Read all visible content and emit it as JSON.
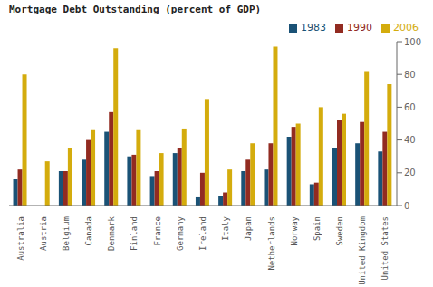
{
  "chart_data": {
    "type": "bar",
    "title": "Mortgage Debt Outstanding (percent of GDP)",
    "categories": [
      "Australia",
      "Austria",
      "Belgium",
      "Canada",
      "Denmark",
      "Finland",
      "France",
      "Germany",
      "Ireland",
      "Italy",
      "Japan",
      "Netherlands",
      "Norway",
      "Spain",
      "Sweden",
      "United Kingdom",
      "United States"
    ],
    "series": [
      {
        "name": "1983",
        "color": "#1a5276",
        "values": [
          16,
          0,
          21,
          28,
          45,
          30,
          18,
          32,
          5,
          6,
          21,
          22,
          42,
          13,
          35,
          38,
          33
        ]
      },
      {
        "name": "1990",
        "color": "#922b21",
        "values": [
          22,
          0,
          21,
          40,
          57,
          31,
          21,
          35,
          20,
          8,
          28,
          38,
          48,
          14,
          52,
          51,
          45
        ]
      },
      {
        "name": "2006",
        "color": "#d4ac0d",
        "values": [
          80,
          27,
          35,
          46,
          96,
          46,
          32,
          47,
          65,
          22,
          38,
          97,
          50,
          60,
          56,
          82,
          74
        ]
      }
    ],
    "ylim": [
      0,
      100
    ],
    "yticks": [
      0,
      20,
      40,
      60,
      80,
      100
    ],
    "grid": false,
    "legend": "upper right"
  }
}
